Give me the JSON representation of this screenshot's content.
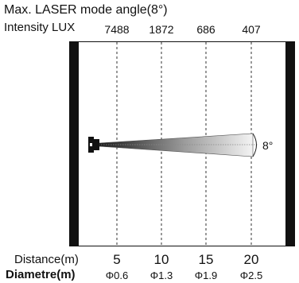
{
  "title": "Max. LASER mode angle(8°)",
  "intensity_label": "Intensity LUX",
  "distance_label": "Distance(m)",
  "diameter_label": "Diametre(m)",
  "beam_angle_label": "8°",
  "columns": [
    {
      "lux": "7488",
      "distance": "5",
      "diameter": "Φ0.6"
    },
    {
      "lux": "1872",
      "distance": "10",
      "diameter": "Φ1.3"
    },
    {
      "lux": "686",
      "distance": "15",
      "diameter": "Φ1.9"
    },
    {
      "lux": "407",
      "distance": "20",
      "diameter": "Φ2.5"
    }
  ]
}
